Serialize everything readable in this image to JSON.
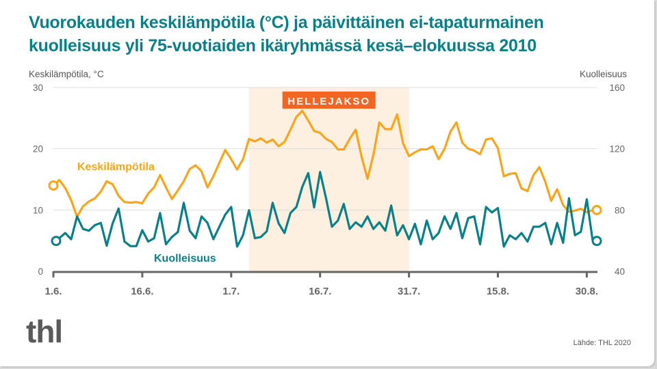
{
  "chart_data": {
    "type": "line",
    "title": "Vuorokauden keskilämpötila (°C) ja päivittäinen ei-tapaturmainen kuolleisuus yli 75-vuotiaiden ikäryhmässä kesä–elokuussa 2010",
    "ylabel_left": "Keskilämpötila, °C",
    "ylabel_right": "Kuolleisuus",
    "ylim_left": [
      0,
      30
    ],
    "ylim_right": [
      40,
      160
    ],
    "yticks_left": [
      "0",
      "10",
      "20",
      "30"
    ],
    "yticks_right": [
      "40",
      "80",
      "120",
      "160"
    ],
    "yticks_left_values": [
      0,
      10,
      20,
      30
    ],
    "yticks_right_values": [
      40,
      80,
      120,
      160
    ],
    "x_start": "1.6.2010",
    "x_days": 92,
    "xticks": [
      {
        "label": "1.6.",
        "day": 0
      },
      {
        "label": "16.6.",
        "day": 15
      },
      {
        "label": "1.7.",
        "day": 30
      },
      {
        "label": "16.7.",
        "day": 45
      },
      {
        "label": "31.7.",
        "day": 60
      },
      {
        "label": "15.8.",
        "day": 75
      },
      {
        "label": "30.8.",
        "day": 90
      }
    ],
    "grid": true,
    "heatwave": {
      "label": "HELLEJAKSO",
      "start_day": 33,
      "end_day": 60
    },
    "series": [
      {
        "name": "Keskilämpötila",
        "axis": "left",
        "color": "#f7a51d",
        "values": [
          14.0,
          14.9,
          13.6,
          11.6,
          8.9,
          10.6,
          11.4,
          11.9,
          13.0,
          14.7,
          14.2,
          12.3,
          11.3,
          11.2,
          11.3,
          11.1,
          12.7,
          13.7,
          15.7,
          13.7,
          11.8,
          13.2,
          14.7,
          16.7,
          17.3,
          16.3,
          13.7,
          15.5,
          17.7,
          19.8,
          18.3,
          16.6,
          18.3,
          21.6,
          21.2,
          21.7,
          21.0,
          21.5,
          20.4,
          21.1,
          23.1,
          25.2,
          26.2,
          24.6,
          22.9,
          22.6,
          21.6,
          21.1,
          19.9,
          19.9,
          21.6,
          23.1,
          18.7,
          15.1,
          19.0,
          24.3,
          23.2,
          23.2,
          25.6,
          20.9,
          18.8,
          19.4,
          19.9,
          19.9,
          20.4,
          18.3,
          20.0,
          22.8,
          24.3,
          21.0,
          20.0,
          19.7,
          19.1,
          21.5,
          21.7,
          20.1,
          15.5,
          15.9,
          16.0,
          13.5,
          13.1,
          15.7,
          17.0,
          14.6,
          11.5,
          13.4,
          10.8,
          9.7,
          9.9,
          10.2,
          9.6,
          10.0
        ]
      },
      {
        "name": "Kuolleisuus",
        "axis": "right",
        "color": "#0a7f87",
        "values": [
          59.8,
          61.6,
          65.0,
          60.9,
          75.8,
          67.6,
          66.5,
          70.1,
          71.6,
          56.7,
          71.3,
          81.0,
          59.4,
          56.4,
          56.4,
          66.8,
          59.4,
          61.6,
          78.0,
          57.6,
          62.4,
          65.6,
          84.7,
          66.5,
          61.6,
          75.8,
          71.6,
          60.9,
          69.1,
          77.0,
          82.0,
          56.1,
          63.5,
          79.9,
          61.6,
          62.4,
          66.1,
          84.7,
          71.3,
          65.0,
          78.0,
          82.0,
          95.1,
          104.1,
          81.7,
          104.8,
          87.7,
          69.1,
          73.1,
          84.0,
          67.6,
          72.0,
          69.1,
          75.8,
          67.6,
          72.0,
          66.5,
          82.9,
          63.4,
          70.1,
          60.9,
          71.0,
          57.6,
          73.1,
          60.9,
          65.0,
          75.8,
          67.6,
          78.0,
          61.6,
          74.7,
          75.8,
          57.6,
          82.0,
          78.4,
          81.3,
          56.1,
          63.5,
          60.9,
          65.0,
          59.4,
          69.1,
          69.1,
          71.6,
          57.6,
          71.6,
          58.6,
          87.7,
          63.5,
          65.8,
          87.0,
          59.8
        ]
      }
    ],
    "annotations": [
      "Keskilämpötila",
      "Kuolleisuus"
    ]
  },
  "footer": {
    "source": "Lähde: THL 2020",
    "logo": "thl"
  },
  "colors": {
    "title": "#0b7f88",
    "heatwave_fill": "#fdf0e0",
    "heatwave_label": "#f26522",
    "axis": "#666666",
    "grid": "#dddddd"
  }
}
